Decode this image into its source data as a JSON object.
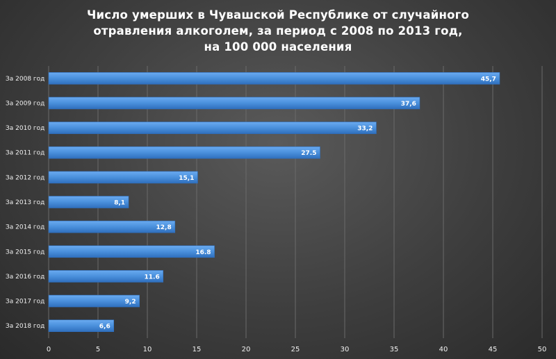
{
  "title_lines": [
    "Число умерших в Чувашской Республике от случайного",
    "отравления алкоголем, за период с 2008 по 2013 год,",
    "на 100 000 населения"
  ],
  "colors": {
    "bar": "#4a90dc",
    "bar_edge": "#2f6fbd",
    "grid": "#6a6a6a"
  },
  "chart_data": {
    "type": "bar",
    "orientation": "horizontal",
    "title": "Число умерших в Чувашской Республике от случайного отравления алкоголем, за период с 2008 по 2013 год, на 100 000 населения",
    "categories": [
      "За 2008 год",
      "За 2009 год",
      "За 2010 год",
      "За 2011 год",
      "За 2012 год",
      "За 2013 год",
      "За 2014 год",
      "За 2015 год",
      "За 2016 год",
      "За 2017 год",
      "За 2018 год"
    ],
    "values": [
      45.7,
      37.6,
      33.2,
      27.5,
      15.1,
      8.1,
      12.8,
      16.8,
      11.6,
      9.2,
      6.6
    ],
    "value_labels": [
      "45,7",
      "37,6",
      "33,2",
      "27.5",
      "15,1",
      "8,1",
      "12,8",
      "16.8",
      "11.6",
      "9,2",
      "6,6"
    ],
    "xticks": [
      "0",
      "5",
      "10",
      "15",
      "20",
      "25",
      "30",
      "35",
      "40",
      "45",
      "50"
    ],
    "xlim": [
      0,
      50
    ],
    "grid": true,
    "legend": "none"
  }
}
